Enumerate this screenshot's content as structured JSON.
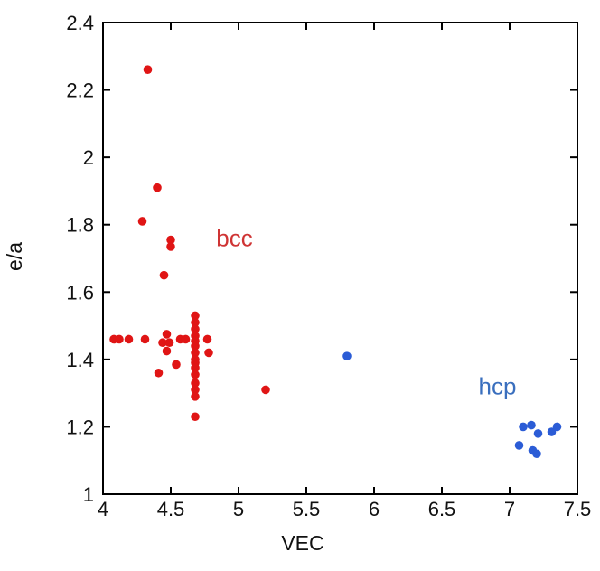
{
  "chart_data": {
    "type": "scatter",
    "title": "",
    "xlabel": "VEC",
    "ylabel": "e/a",
    "xlim": [
      4,
      7.5
    ],
    "ylim": [
      1,
      2.4
    ],
    "x_ticks": [
      4,
      4.5,
      5,
      5.5,
      6,
      6.5,
      7,
      7.5
    ],
    "y_ticks": [
      1,
      1.2,
      1.4,
      1.6,
      1.8,
      2,
      2.2,
      2.4
    ],
    "grid": false,
    "legend_position": "in-plot-text-labels",
    "axis_color": "#000000",
    "marker_radius": 4.8,
    "series": [
      {
        "name": "bcc",
        "label": "bcc",
        "color": "#e01515",
        "label_color": "#cf3434",
        "label_x": 4.97,
        "label_y": 1.76,
        "points": [
          [
            4.33,
            2.26
          ],
          [
            4.4,
            1.91
          ],
          [
            4.29,
            1.81
          ],
          [
            4.5,
            1.755
          ],
          [
            4.5,
            1.735
          ],
          [
            4.45,
            1.65
          ],
          [
            4.08,
            1.46
          ],
          [
            4.12,
            1.46
          ],
          [
            4.19,
            1.46
          ],
          [
            4.31,
            1.46
          ],
          [
            4.57,
            1.46
          ],
          [
            4.61,
            1.46
          ],
          [
            4.77,
            1.46
          ],
          [
            4.47,
            1.475
          ],
          [
            4.44,
            1.45
          ],
          [
            4.49,
            1.45
          ],
          [
            4.47,
            1.425
          ],
          [
            4.78,
            1.42
          ],
          [
            4.54,
            1.385
          ],
          [
            4.41,
            1.36
          ],
          [
            4.68,
            1.53
          ],
          [
            4.68,
            1.51
          ],
          [
            4.68,
            1.49
          ],
          [
            4.68,
            1.47
          ],
          [
            4.68,
            1.455
          ],
          [
            4.68,
            1.44
          ],
          [
            4.68,
            1.42
          ],
          [
            4.68,
            1.4
          ],
          [
            4.68,
            1.39
          ],
          [
            4.68,
            1.375
          ],
          [
            4.68,
            1.355
          ],
          [
            4.68,
            1.33
          ],
          [
            4.68,
            1.31
          ],
          [
            4.68,
            1.29
          ],
          [
            4.68,
            1.23
          ],
          [
            5.2,
            1.31
          ]
        ]
      },
      {
        "name": "hcp",
        "label": "hcp",
        "color": "#2b5cd6",
        "label_color": "#3a6fbe",
        "label_x": 6.91,
        "label_y": 1.32,
        "points": [
          [
            5.8,
            1.41
          ],
          [
            7.07,
            1.145
          ],
          [
            7.1,
            1.2
          ],
          [
            7.16,
            1.205
          ],
          [
            7.17,
            1.13
          ],
          [
            7.2,
            1.12
          ],
          [
            7.21,
            1.18
          ],
          [
            7.31,
            1.185
          ],
          [
            7.35,
            1.2
          ]
        ]
      }
    ]
  }
}
